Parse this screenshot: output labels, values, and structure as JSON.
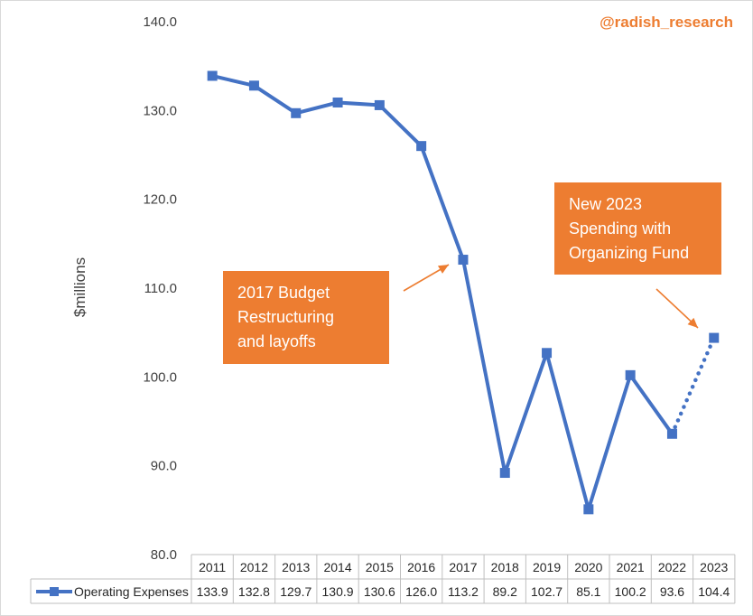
{
  "chart_data": {
    "type": "line",
    "title": "",
    "xlabel": "",
    "ylabel": "$millions",
    "ylim": [
      80,
      140
    ],
    "y_ticks": [
      "80.0",
      "90.0",
      "100.0",
      "110.0",
      "120.0",
      "130.0",
      "140.0"
    ],
    "grid": false,
    "legend": "data-table-bottom",
    "categories": [
      "2011",
      "2012",
      "2013",
      "2014",
      "2015",
      "2016",
      "2017",
      "2018",
      "2019",
      "2020",
      "2021",
      "2022",
      "2023"
    ],
    "series": [
      {
        "name": "Operating Expenses",
        "color": "#4472c4",
        "values": [
          133.9,
          132.8,
          129.7,
          130.9,
          130.6,
          126.0,
          113.2,
          89.2,
          102.7,
          85.1,
          100.2,
          93.6,
          104.4
        ],
        "value_labels": [
          "133.9",
          "132.8",
          "129.7",
          "130.9",
          "130.6",
          "126.0",
          "113.2",
          "89.2",
          "102.7",
          "85.1",
          "100.2",
          "93.6",
          "104.4"
        ],
        "dotted_last_segment": true
      }
    ],
    "annotations": [
      {
        "text_lines": [
          "2017 Budget",
          "Restructuring",
          "and layoffs"
        ],
        "points_to": "2017"
      },
      {
        "text_lines": [
          "New 2023",
          "Spending with",
          "Organizing Fund"
        ],
        "points_to": "2023"
      }
    ],
    "accent_color": "#ed7d31"
  },
  "watermark": "@radish_research"
}
